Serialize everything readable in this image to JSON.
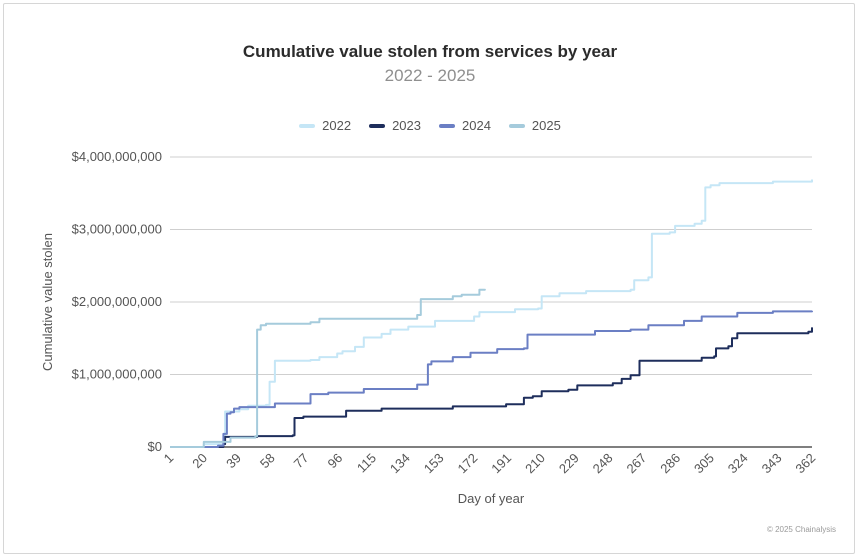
{
  "footer": "© 2025 Chainalysis",
  "chart_data": {
    "type": "line",
    "title": "Cumulative value stolen from services by year",
    "subtitle": "2022 - 2025",
    "xlabel": "Day of year",
    "ylabel": "Cumulative value stolen",
    "xlim": [
      1,
      362
    ],
    "ylim": [
      0,
      4000000000
    ],
    "x_ticks": [
      "1",
      "20",
      "39",
      "58",
      "77",
      "96",
      "115",
      "134",
      "153",
      "172",
      "191",
      "210",
      "229",
      "248",
      "267",
      "286",
      "305",
      "324",
      "343",
      "362"
    ],
    "y_ticks": [
      "$0",
      "$1,000,000,000",
      "$2,000,000,000",
      "$3,000,000,000",
      "$4,000,000,000"
    ],
    "grid": true,
    "legend": "top-center",
    "series": [
      {
        "name": "2022",
        "color": "#c5e6f6",
        "x": [
          1,
          20,
          31,
          32,
          40,
          45,
          55,
          57,
          60,
          80,
          85,
          95,
          98,
          105,
          110,
          120,
          125,
          135,
          150,
          172,
          175,
          195,
          208,
          210,
          220,
          235,
          260,
          262,
          270,
          272,
          282,
          285,
          296,
          300,
          302,
          305,
          310,
          340,
          362
        ],
        "y": [
          0,
          40000000,
          90000000,
          490000000,
          520000000,
          570000000,
          580000000,
          900000000,
          1190000000,
          1200000000,
          1240000000,
          1290000000,
          1320000000,
          1380000000,
          1510000000,
          1560000000,
          1620000000,
          1660000000,
          1740000000,
          1800000000,
          1860000000,
          1900000000,
          1910000000,
          2080000000,
          2120000000,
          2150000000,
          2170000000,
          2300000000,
          2340000000,
          2940000000,
          2960000000,
          3050000000,
          3080000000,
          3120000000,
          3580000000,
          3610000000,
          3640000000,
          3660000000,
          3690000000
        ]
      },
      {
        "name": "2023",
        "color": "#1e2e5c",
        "x": [
          1,
          28,
          31,
          32,
          50,
          70,
          71,
          76,
          100,
          120,
          160,
          190,
          200,
          205,
          210,
          225,
          230,
          250,
          255,
          260,
          265,
          300,
          307,
          308,
          315,
          317,
          320,
          360,
          362
        ],
        "y": [
          0,
          0,
          40000000,
          140000000,
          150000000,
          160000000,
          400000000,
          420000000,
          500000000,
          530000000,
          560000000,
          590000000,
          680000000,
          700000000,
          770000000,
          790000000,
          850000000,
          880000000,
          940000000,
          990000000,
          1190000000,
          1230000000,
          1250000000,
          1360000000,
          1390000000,
          1500000000,
          1570000000,
          1590000000,
          1650000000
        ]
      },
      {
        "name": "2024",
        "color": "#6b7fc4",
        "x": [
          1,
          28,
          31,
          33,
          35,
          37,
          40,
          60,
          80,
          90,
          110,
          140,
          146,
          148,
          160,
          170,
          185,
          200,
          202,
          240,
          260,
          270,
          290,
          300,
          320,
          340,
          362
        ],
        "y": [
          0,
          20000000,
          180000000,
          460000000,
          480000000,
          530000000,
          550000000,
          600000000,
          730000000,
          750000000,
          800000000,
          860000000,
          1140000000,
          1180000000,
          1240000000,
          1300000000,
          1350000000,
          1360000000,
          1550000000,
          1600000000,
          1620000000,
          1680000000,
          1740000000,
          1800000000,
          1850000000,
          1870000000,
          1880000000
        ]
      },
      {
        "name": "2025",
        "color": "#a5cbdc",
        "x": [
          1,
          20,
          35,
          49,
          50,
          52,
          55,
          80,
          85,
          140,
          142,
          160,
          165,
          175,
          178
        ],
        "y": [
          0,
          70000000,
          130000000,
          150000000,
          1620000000,
          1680000000,
          1700000000,
          1720000000,
          1770000000,
          1820000000,
          2040000000,
          2080000000,
          2100000000,
          2170000000,
          2180000000
        ]
      }
    ]
  }
}
